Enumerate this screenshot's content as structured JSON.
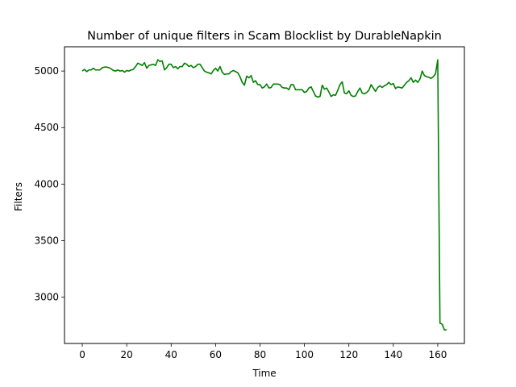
{
  "chart_data": {
    "type": "line",
    "title": "Number of unique filters in Scam Blocklist by DurableNapkin",
    "xlabel": "Time",
    "ylabel": "Filters",
    "xlim": [
      -8,
      172
    ],
    "ylim": [
      2590,
      5215
    ],
    "x_ticks": [
      0,
      20,
      40,
      60,
      80,
      100,
      120,
      140,
      160
    ],
    "y_ticks": [
      3000,
      3500,
      4000,
      4500,
      5000
    ],
    "grid": false,
    "legend": "none",
    "series": [
      {
        "color": "#008000",
        "x": [
          0,
          1,
          2,
          3,
          4,
          5,
          6,
          7,
          8,
          9,
          10,
          11,
          12,
          13,
          14,
          15,
          16,
          17,
          18,
          19,
          20,
          21,
          22,
          23,
          24,
          25,
          26,
          27,
          28,
          29,
          30,
          31,
          32,
          33,
          34,
          35,
          36,
          37,
          38,
          39,
          40,
          41,
          42,
          43,
          44,
          45,
          46,
          47,
          48,
          49,
          50,
          51,
          52,
          53,
          54,
          55,
          56,
          57,
          58,
          59,
          60,
          61,
          62,
          63,
          64,
          65,
          66,
          67,
          68,
          69,
          70,
          71,
          72,
          73,
          74,
          75,
          76,
          77,
          78,
          79,
          80,
          81,
          82,
          83,
          84,
          85,
          86,
          87,
          88,
          89,
          90,
          91,
          92,
          93,
          94,
          95,
          96,
          97,
          98,
          99,
          100,
          101,
          102,
          103,
          104,
          105,
          106,
          107,
          108,
          109,
          110,
          111,
          112,
          113,
          114,
          115,
          116,
          117,
          118,
          119,
          120,
          121,
          122,
          123,
          124,
          125,
          126,
          127,
          128,
          129,
          130,
          131,
          132,
          133,
          134,
          135,
          136,
          137,
          138,
          139,
          140,
          141,
          142,
          143,
          144,
          145,
          146,
          147,
          148,
          149,
          150,
          151,
          152,
          153,
          154,
          155,
          156,
          157,
          158,
          159,
          160,
          161,
          162,
          163,
          164
        ],
        "y": [
          5000,
          5015,
          4995,
          5010,
          5010,
          5025,
          5010,
          5010,
          5010,
          5030,
          5035,
          5035,
          5030,
          5020,
          5005,
          5000,
          5010,
          5000,
          5005,
          4990,
          5005,
          5000,
          5010,
          5015,
          5040,
          5070,
          5060,
          5050,
          5075,
          5025,
          5050,
          5055,
          5060,
          5050,
          5100,
          5085,
          5090,
          5010,
          5030,
          5060,
          5060,
          5030,
          5040,
          5020,
          5040,
          5040,
          5070,
          5060,
          5040,
          5050,
          5030,
          5040,
          5060,
          5060,
          5030,
          5000,
          4990,
          4985,
          4975,
          5005,
          5025,
          5000,
          5040,
          4990,
          4970,
          4975,
          4975,
          4995,
          5005,
          4995,
          4985,
          4950,
          4900,
          4875,
          4955,
          4940,
          4960,
          4900,
          4915,
          4880,
          4880,
          4850,
          4860,
          4885,
          4850,
          4855,
          4885,
          4885,
          4885,
          4880,
          4855,
          4850,
          4850,
          4835,
          4880,
          4880,
          4835,
          4835,
          4835,
          4835,
          4810,
          4820,
          4850,
          4860,
          4820,
          4780,
          4770,
          4775,
          4875,
          4840,
          4850,
          4815,
          4775,
          4790,
          4785,
          4830,
          4880,
          4905,
          4805,
          4800,
          4825,
          4785,
          4775,
          4780,
          4820,
          4850,
          4805,
          4800,
          4810,
          4830,
          4880,
          4850,
          4820,
          4855,
          4870,
          4855,
          4870,
          4880,
          4900,
          4880,
          4890,
          4845,
          4860,
          4855,
          4850,
          4875,
          4900,
          4915,
          4940,
          4900,
          4920,
          4900,
          4930,
          5000,
          4960,
          4950,
          4945,
          4935,
          4950,
          4975,
          5100,
          2770,
          2760,
          2710,
          2710
        ]
      }
    ]
  }
}
